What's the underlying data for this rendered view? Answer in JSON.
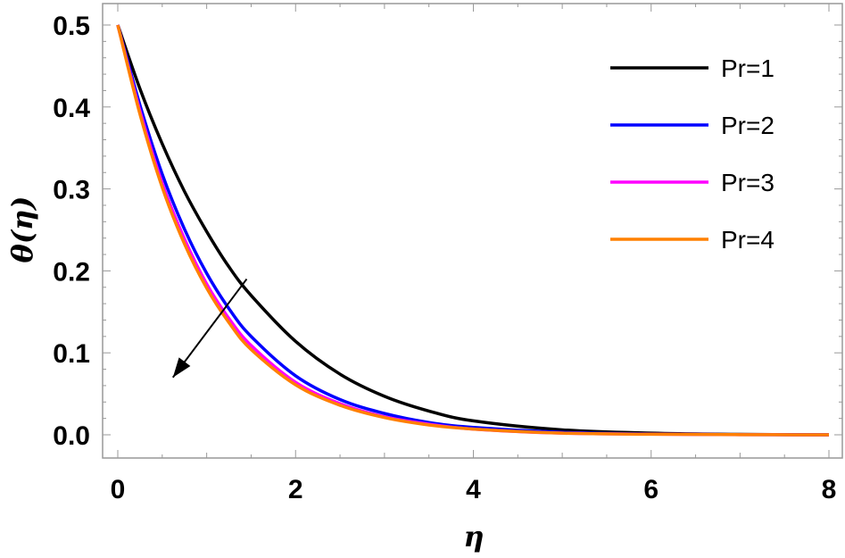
{
  "chart_data": {
    "type": "line",
    "xlabel": "η",
    "ylabel": "θ(η)",
    "xlim": [
      0,
      8
    ],
    "ylim": [
      0,
      0.5
    ],
    "x_ticks": [
      "0",
      "2",
      "4",
      "6",
      "8"
    ],
    "y_ticks": [
      "0.0",
      "0.1",
      "0.2",
      "0.3",
      "0.4",
      "0.5"
    ],
    "grid": false,
    "legend_position": "top-right",
    "x": [
      0,
      0.25,
      0.5,
      0.75,
      1,
      1.25,
      1.5,
      2,
      2.5,
      3,
      3.5,
      4,
      5,
      6,
      7,
      8
    ],
    "series": [
      {
        "name": "Pr=1",
        "color": "#000000",
        "values": [
          0.5,
          0.422,
          0.355,
          0.297,
          0.248,
          0.205,
          0.17,
          0.114,
          0.074,
          0.047,
          0.029,
          0.017,
          0.006,
          0.002,
          0.0005,
          0.0
        ]
      },
      {
        "name": "Pr=2",
        "color": "#0000ff",
        "values": [
          0.5,
          0.402,
          0.318,
          0.251,
          0.197,
          0.154,
          0.12,
          0.072,
          0.043,
          0.026,
          0.015,
          0.009,
          0.003,
          0.001,
          0.0003,
          0.0
        ]
      },
      {
        "name": "Pr=3",
        "color": "#ff00ff",
        "values": [
          0.5,
          0.395,
          0.307,
          0.239,
          0.184,
          0.142,
          0.109,
          0.064,
          0.038,
          0.022,
          0.013,
          0.007,
          0.002,
          0.0008,
          0.0002,
          0.0
        ]
      },
      {
        "name": "Pr=4",
        "color": "#ff8000",
        "values": [
          0.5,
          0.391,
          0.302,
          0.233,
          0.179,
          0.137,
          0.104,
          0.061,
          0.036,
          0.021,
          0.012,
          0.007,
          0.002,
          0.0007,
          0.0002,
          0.0
        ]
      }
    ],
    "annotation_arrow": {
      "from": [
        1.45,
        0.19
      ],
      "to": [
        0.62,
        0.07
      ]
    }
  }
}
